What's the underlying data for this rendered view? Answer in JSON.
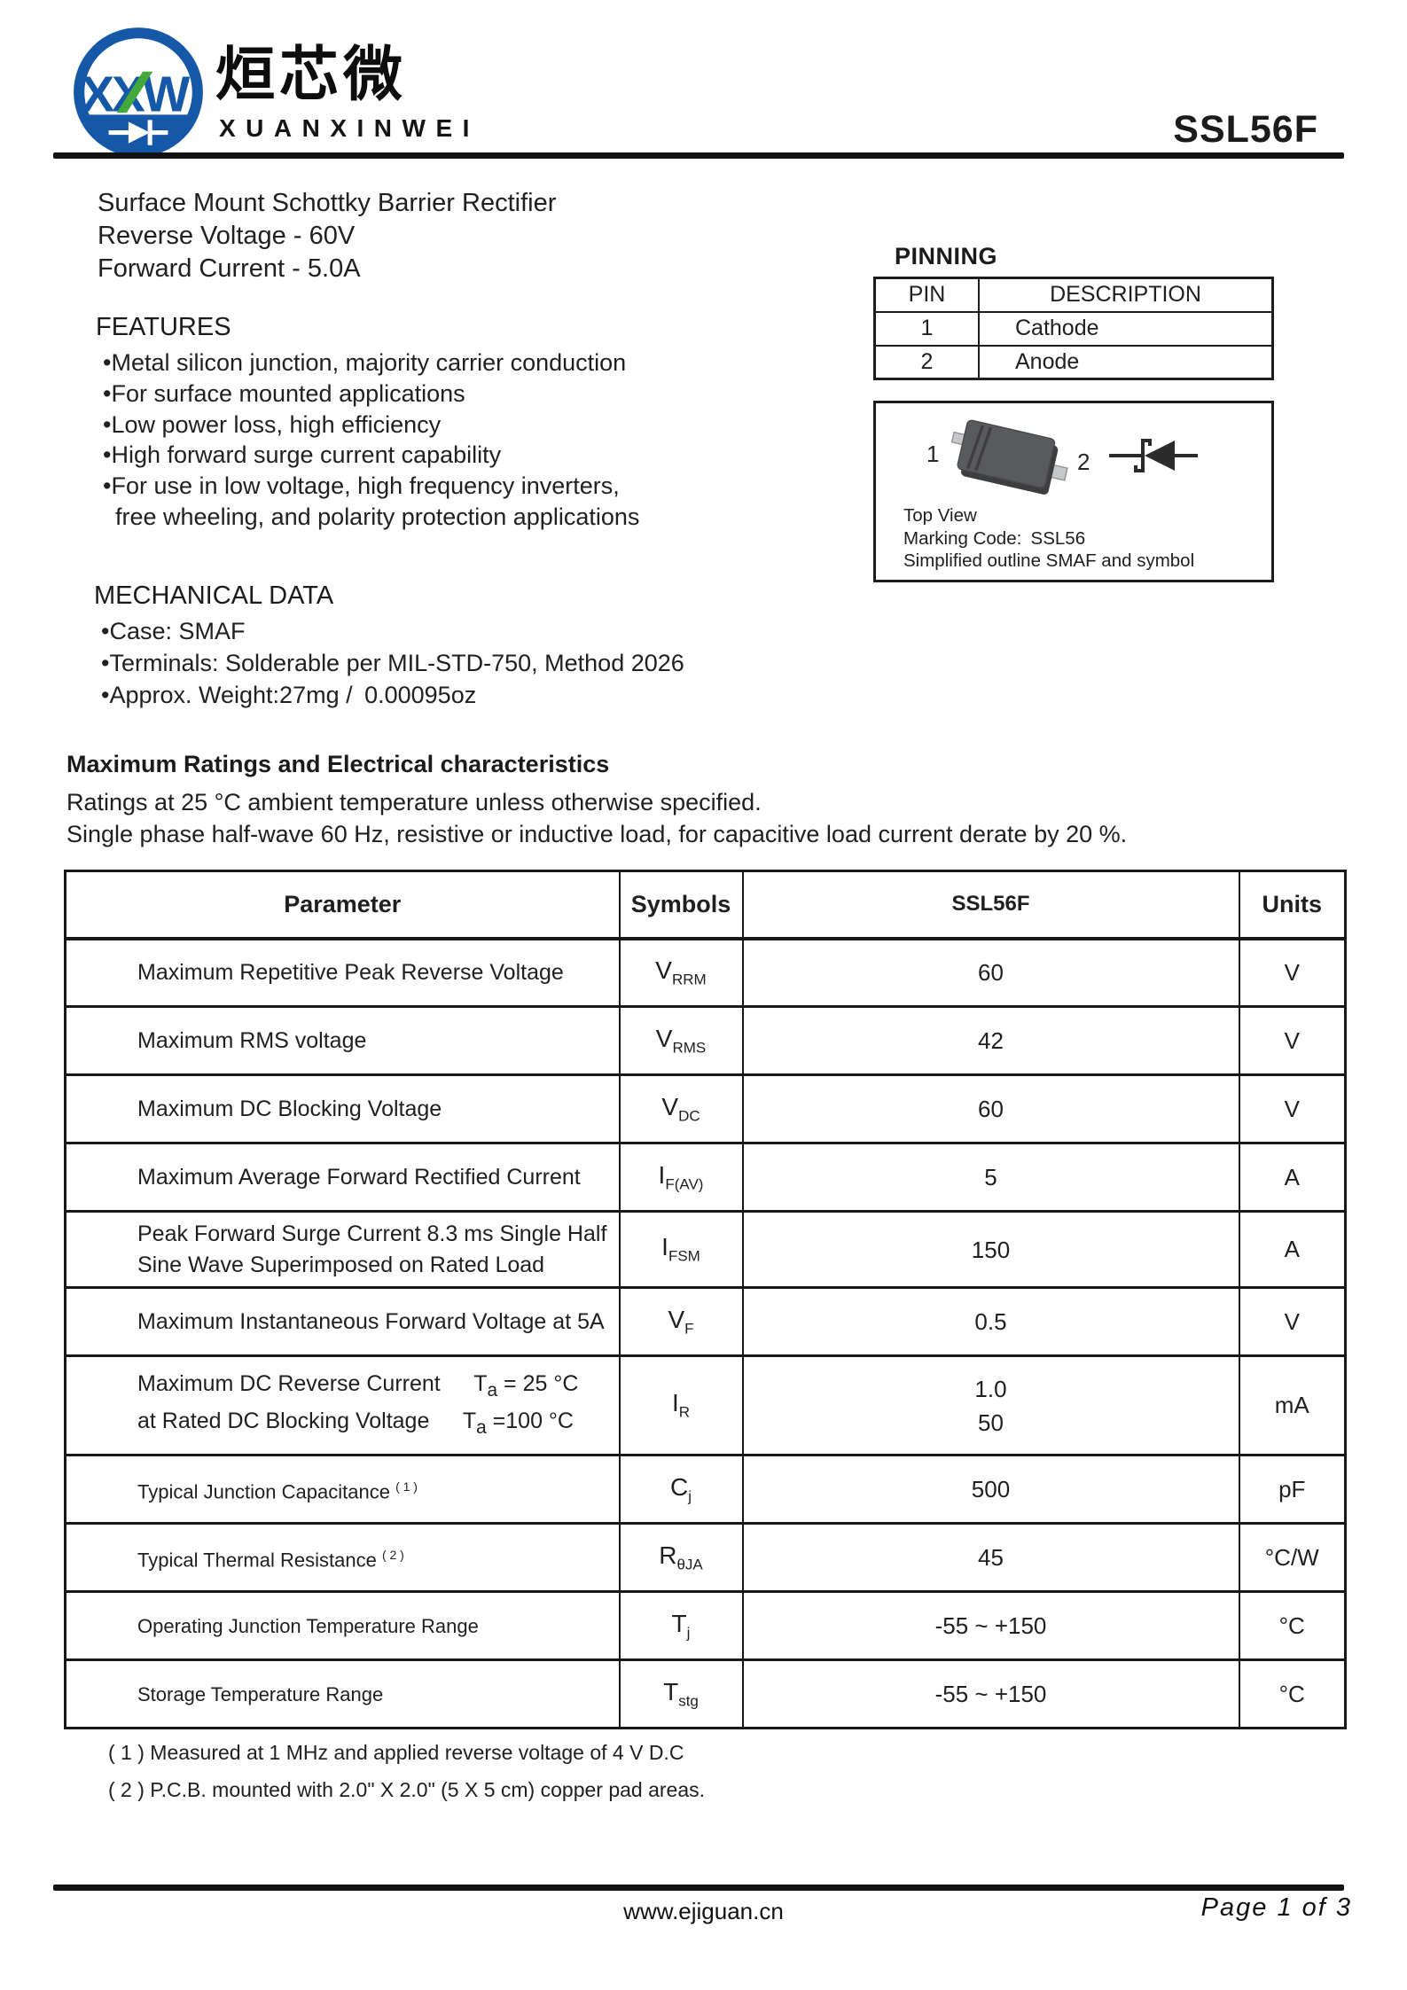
{
  "brand": {
    "logo_letters": "XXW",
    "company_cn": "烜芯微",
    "company_en": "XUANXINWEI",
    "part_number": "SSL56F"
  },
  "intro": {
    "lines": [
      "Surface Mount Schottky Barrier Rectifier",
      "Reverse Voltage - 60V",
      "Forward Current - 5.0A"
    ]
  },
  "features": {
    "title": "FEATURES",
    "items": [
      "Metal silicon junction, majority carrier conduction",
      "For surface mounted applications",
      "Low power loss, high efficiency",
      "High forward surge current capability",
      "For use in low voltage, high frequency inverters,\nfree wheeling, and polarity protection applications"
    ]
  },
  "mechanical": {
    "title": "MECHANICAL DATA",
    "items": [
      "Case: SMAF",
      "Terminals: Solderable per MIL-STD-750, Method 2026",
      "Approx. Weight:27mg / 0.00095oz"
    ]
  },
  "pinning": {
    "title": "PINNING",
    "headers": [
      "PIN",
      "DESCRIPTION"
    ],
    "rows": [
      [
        "1",
        "Cathode"
      ],
      [
        "2",
        "Anode"
      ]
    ]
  },
  "package_box": {
    "pin1_label": "1",
    "pin2_label": "2",
    "line1": "Top View",
    "line2": "Marking Code: SSL56",
    "line3": "Simplified outline SMAF and symbol"
  },
  "ratings": {
    "title": "Maximum Ratings and Electrical characteristics",
    "note1": "Ratings at 25 °C ambient temperature unless otherwise specified.",
    "note2": "Single phase half-wave 60 Hz, resistive or inductive load, for capacitive load current derate by 20 %.",
    "headers": [
      "Parameter",
      "Symbols",
      "SSL56F",
      "Units"
    ],
    "rows": [
      {
        "param": "Maximum Repetitive Peak Reverse Voltage",
        "symbol": "V_{RRM}",
        "value": "60",
        "unit": "V"
      },
      {
        "param": "Maximum RMS voltage",
        "symbol": "V_{RMS}",
        "value": "42",
        "unit": "V"
      },
      {
        "param": "Maximum DC Blocking Voltage",
        "symbol": "V_{DC}",
        "value": "60",
        "unit": "V"
      },
      {
        "param": "Maximum Average Forward Rectified Current",
        "symbol": "I_{F(AV)}",
        "value": "5",
        "unit": "A"
      },
      {
        "param": "Peak Forward Surge Current 8.3 ms Single Half\nSine Wave Superimposed on Rated Load",
        "symbol": "I_{FSM}",
        "value": "150",
        "unit": "A"
      },
      {
        "param": "Maximum Instantaneous Forward Voltage at 5A",
        "symbol": "V_{F}",
        "value": "0.5",
        "unit": "V"
      },
      {
        "param": "Maximum DC Reverse Current  T_{a} = 25 °C\nat Rated DC Blocking Voltage  T_{a} =100 °C",
        "symbol": "I_{R}",
        "value": "1.0\n50",
        "unit": "mA"
      },
      {
        "param": "Typical Junction Capacitance ^{( 1 )}",
        "symbol": "C_{j}",
        "value": "500",
        "unit": "pF"
      },
      {
        "param": "Typical Thermal Resistance ^{( 2 )}",
        "symbol": "R_{θJA}",
        "value": "45",
        "unit": "°C/W"
      },
      {
        "param": "Operating Junction Temperature Range",
        "symbol": "T_{j}",
        "value": "-55 ~ +150",
        "unit": "°C"
      },
      {
        "param": "Storage Temperature Range",
        "symbol": "T_{stg}",
        "value": "-55 ~ +150",
        "unit": "°C"
      }
    ],
    "footnotes": [
      "( 1 ) Measured at 1 MHz and applied reverse voltage of 4 V D.C",
      "( 2 ) P.C.B. mounted with 2.0\" X 2.0\" (5 X 5 cm) copper pad areas."
    ]
  },
  "footer": {
    "website": "www.ejiguan.cn",
    "page": "Page 1 of 3"
  },
  "colors": {
    "logo_blue": "#1558a7",
    "logo_green": "#43a93d",
    "ink": "#1b1b1b"
  }
}
